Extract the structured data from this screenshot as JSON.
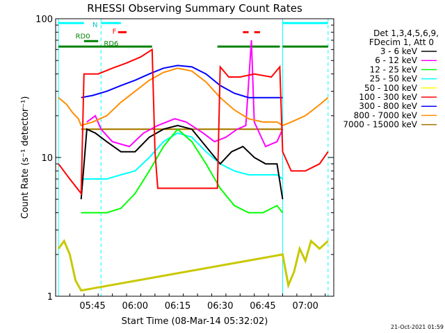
{
  "chart_data": {
    "type": "line",
    "title": "RHESSI Observing Summary Count Rates",
    "xlabel": "Start Time (08-Mar-14 05:32:02)",
    "ylabel": "Count Rate (s⁻¹ detector⁻¹)",
    "yscale": "log",
    "ylim": [
      1,
      100
    ],
    "xlim_minutes": [
      "05:32",
      "07:10"
    ],
    "x_ticks": [
      "05:45",
      "06:00",
      "06:15",
      "06:30",
      "06:45",
      "07:00"
    ],
    "y_ticks": [
      "1",
      "10",
      "100"
    ],
    "grid": false,
    "footer": "21-Oct-2021 01:59",
    "legend": {
      "placement": "right",
      "header": [
        "Det 1,3,4,5,6,9,",
        "FDecim 1, Att 0"
      ]
    },
    "series": [
      {
        "name": "3 - 6 keV",
        "color": "#000000",
        "points": [
          [
            "05:41",
            5
          ],
          [
            "05:43",
            16
          ],
          [
            "05:46",
            15
          ],
          [
            "05:50",
            13
          ],
          [
            "05:55",
            11
          ],
          [
            "06:00",
            11
          ],
          [
            "06:05",
            14
          ],
          [
            "06:10",
            16
          ],
          [
            "06:15",
            17
          ],
          [
            "06:20",
            16
          ],
          [
            "06:25",
            12
          ],
          [
            "06:30",
            9
          ],
          [
            "06:34",
            11
          ],
          [
            "06:38",
            12
          ],
          [
            "06:42",
            10
          ],
          [
            "06:46",
            9
          ],
          [
            "06:50",
            9
          ],
          [
            "06:52",
            5
          ]
        ]
      },
      {
        "name": "6 - 12 keV",
        "color": "#ff00ff",
        "points": [
          [
            "05:43",
            18
          ],
          [
            "05:46",
            20
          ],
          [
            "05:48",
            16
          ],
          [
            "05:52",
            13
          ],
          [
            "05:58",
            12
          ],
          [
            "06:03",
            15
          ],
          [
            "06:08",
            17
          ],
          [
            "06:14",
            19
          ],
          [
            "06:18",
            18
          ],
          [
            "06:24",
            15
          ],
          [
            "06:28",
            13
          ],
          [
            "06:32",
            14
          ],
          [
            "06:36",
            16
          ],
          [
            "06:39",
            17
          ],
          [
            "06:41",
            70
          ],
          [
            "06:42",
            18
          ],
          [
            "06:46",
            12
          ],
          [
            "06:50",
            13
          ],
          [
            "06:52",
            16
          ]
        ]
      },
      {
        "name": "12 - 25 keV",
        "color": "#00ff00",
        "points": [
          [
            "05:41",
            4
          ],
          [
            "05:46",
            4
          ],
          [
            "05:50",
            4
          ],
          [
            "05:55",
            4.3
          ],
          [
            "06:00",
            5.5
          ],
          [
            "06:05",
            8
          ],
          [
            "06:10",
            12
          ],
          [
            "06:15",
            16
          ],
          [
            "06:20",
            13
          ],
          [
            "06:25",
            9
          ],
          [
            "06:30",
            6
          ],
          [
            "06:35",
            4.5
          ],
          [
            "06:40",
            4
          ],
          [
            "06:45",
            4
          ],
          [
            "06:50",
            4.5
          ],
          [
            "06:52",
            4
          ]
        ]
      },
      {
        "name": "25 - 50 keV",
        "color": "#00ffff",
        "points": [
          [
            "05:41",
            7
          ],
          [
            "05:46",
            7
          ],
          [
            "05:50",
            7
          ],
          [
            "05:55",
            7.5
          ],
          [
            "06:00",
            8
          ],
          [
            "06:05",
            10
          ],
          [
            "06:10",
            13
          ],
          [
            "06:15",
            15
          ],
          [
            "06:20",
            14
          ],
          [
            "06:25",
            11
          ],
          [
            "06:30",
            9
          ],
          [
            "06:35",
            8
          ],
          [
            "06:40",
            7.5
          ],
          [
            "06:45",
            7.5
          ],
          [
            "06:50",
            7.5
          ],
          [
            "06:52",
            7
          ]
        ]
      },
      {
        "name": "50 - 100 keV",
        "color": "#ffff00",
        "points": [
          [
            "05:41",
            16
          ],
          [
            "05:46",
            16
          ],
          [
            "05:50",
            16
          ],
          [
            "05:55",
            16
          ],
          [
            "06:00",
            16
          ],
          [
            "06:05",
            16
          ],
          [
            "06:10",
            16
          ],
          [
            "06:15",
            16
          ],
          [
            "06:20",
            16
          ],
          [
            "06:25",
            16
          ],
          [
            "06:30",
            16
          ],
          [
            "06:35",
            16
          ],
          [
            "06:40",
            16
          ],
          [
            "06:45",
            16
          ],
          [
            "06:50",
            16
          ],
          [
            "06:52",
            16
          ]
        ]
      },
      {
        "name": "100 - 300 keV",
        "color": "#ff0000",
        "points": [
          [
            "05:33",
            9
          ],
          [
            "05:37",
            7
          ],
          [
            "05:41",
            5.5
          ],
          [
            "05:42",
            40
          ],
          [
            "05:47",
            40
          ],
          [
            "05:52",
            44
          ],
          [
            "05:57",
            48
          ],
          [
            "06:02",
            53
          ],
          [
            "06:06",
            60
          ],
          [
            "06:07",
            11
          ],
          [
            "06:08",
            6
          ],
          [
            "06:29",
            6
          ],
          [
            "06:30",
            45
          ],
          [
            "06:33",
            38
          ],
          [
            "06:37",
            38
          ],
          [
            "06:42",
            40
          ],
          [
            "06:48",
            38
          ],
          [
            "06:51",
            45
          ],
          [
            "06:52",
            11
          ],
          [
            "06:55",
            8
          ],
          [
            "07:00",
            8
          ],
          [
            "07:05",
            9
          ],
          [
            "07:08",
            11
          ]
        ]
      },
      {
        "name": "300 - 800 keV",
        "color": "#0000ff",
        "points": [
          [
            "05:41",
            27
          ],
          [
            "05:45",
            28
          ],
          [
            "05:50",
            30
          ],
          [
            "05:55",
            33
          ],
          [
            "06:00",
            36
          ],
          [
            "06:05",
            40
          ],
          [
            "06:10",
            44
          ],
          [
            "06:15",
            46
          ],
          [
            "06:20",
            45
          ],
          [
            "06:25",
            40
          ],
          [
            "06:30",
            33
          ],
          [
            "06:35",
            29
          ],
          [
            "06:40",
            27
          ],
          [
            "06:45",
            27
          ],
          [
            "06:50",
            27
          ],
          [
            "06:52",
            27
          ]
        ]
      },
      {
        "name": "800 - 7000 keV",
        "color": "#ff8c00",
        "points": [
          [
            "05:33",
            27
          ],
          [
            "05:36",
            24
          ],
          [
            "05:38",
            21
          ],
          [
            "05:40",
            19
          ],
          [
            "05:41",
            17
          ],
          [
            "05:45",
            18
          ],
          [
            "05:50",
            20
          ],
          [
            "05:55",
            25
          ],
          [
            "06:00",
            30
          ],
          [
            "06:05",
            36
          ],
          [
            "06:10",
            41
          ],
          [
            "06:15",
            44
          ],
          [
            "06:20",
            42
          ],
          [
            "06:25",
            35
          ],
          [
            "06:30",
            27
          ],
          [
            "06:35",
            22
          ],
          [
            "06:40",
            19
          ],
          [
            "06:45",
            18
          ],
          [
            "06:50",
            18
          ],
          [
            "06:52",
            17
          ],
          [
            "06:55",
            18
          ],
          [
            "07:00",
            20
          ],
          [
            "07:05",
            24
          ],
          [
            "07:08",
            27
          ]
        ]
      },
      {
        "name": "7000 - 15000 keV",
        "color": "#a07000",
        "points": [
          [
            "05:41",
            16
          ],
          [
            "05:45",
            16
          ],
          [
            "05:50",
            16
          ],
          [
            "05:55",
            16
          ],
          [
            "06:00",
            16
          ],
          [
            "06:05",
            16
          ],
          [
            "06:10",
            16
          ],
          [
            "06:15",
            16
          ],
          [
            "06:20",
            16
          ],
          [
            "06:25",
            16
          ],
          [
            "06:30",
            16
          ],
          [
            "06:35",
            16
          ],
          [
            "06:40",
            16
          ],
          [
            "06:45",
            16
          ],
          [
            "06:50",
            16
          ],
          [
            "06:52",
            16
          ]
        ]
      },
      {
        "name": "",
        "color": "#c8c800",
        "points": [
          [
            "05:33",
            2.2
          ],
          [
            "05:35",
            2.5
          ],
          [
            "05:37",
            2
          ],
          [
            "05:39",
            1.3
          ],
          [
            "05:41",
            1.1
          ],
          [
            "06:52",
            2.0
          ],
          [
            "06:54",
            1.2
          ],
          [
            "06:56",
            1.5
          ],
          [
            "06:58",
            2.2
          ],
          [
            "07:00",
            1.8
          ],
          [
            "07:02",
            2.5
          ],
          [
            "07:05",
            2.2
          ],
          [
            "07:08",
            2.5
          ]
        ]
      }
    ],
    "annotations": [
      {
        "text": "N",
        "color": "#00c8c8",
        "x": "05:45",
        "y": 87
      },
      {
        "text": "F",
        "color": "#ff0000",
        "x": "05:52",
        "y": 78
      },
      {
        "text": "RD0",
        "color": "#008000",
        "x": "05:39",
        "y": 72
      },
      {
        "text": "RD6",
        "color": "#008000",
        "x": "05:49",
        "y": 64
      }
    ],
    "bars": [
      {
        "label": "N",
        "color": "#00ffff",
        "segments": [
          [
            "05:33",
            "05:42"
          ],
          [
            "05:48",
            "05:55"
          ],
          [
            "06:52",
            "07:08"
          ]
        ],
        "y": 93
      },
      {
        "label": "F",
        "color": "#ff0000",
        "segments": [
          [
            "05:54",
            "05:57"
          ],
          [
            "06:38",
            "06:40"
          ],
          [
            "06:42",
            "06:44"
          ]
        ],
        "y": 80
      },
      {
        "label": "RD",
        "color": "#008000",
        "segments": [
          [
            "05:33",
            "06:06"
          ],
          [
            "06:29",
            "06:51"
          ],
          [
            "06:52",
            "07:08"
          ]
        ],
        "y": 63
      },
      {
        "label": "RD0",
        "color": "#008000",
        "segments": [
          [
            "05:42",
            "05:47"
          ]
        ],
        "y": 69
      }
    ],
    "vlines": [
      {
        "x": "05:33",
        "color": "#00ffff",
        "style": "solid"
      },
      {
        "x": "05:48",
        "color": "#00ffff",
        "style": "dashed"
      },
      {
        "x": "06:52",
        "color": "#00ffff",
        "style": "solid"
      },
      {
        "x": "07:08",
        "color": "#00ffff",
        "style": "dashed"
      }
    ]
  }
}
